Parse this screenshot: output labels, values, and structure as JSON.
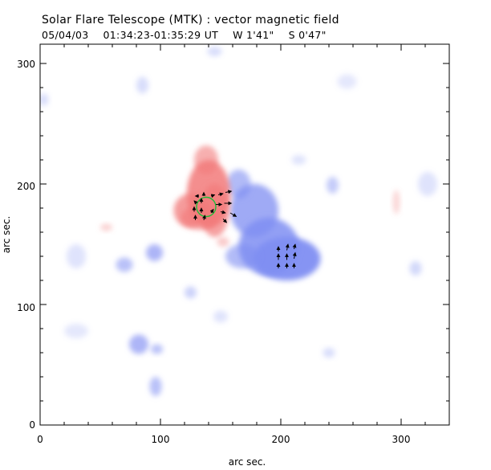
{
  "header": {
    "title": "Solar Flare Telescope (MTK) : vector magnetic field",
    "date": "05/04/03",
    "time_range": "01:34:23-01:35:29 UT",
    "pos_w": "W 1'41\"",
    "pos_s": "S 0'47\""
  },
  "chart_data": {
    "type": "heatmap",
    "title": "Solar Flare Telescope (MTK) : vector magnetic field",
    "xlabel": "arc sec.",
    "ylabel": "arc sec.",
    "xlim": [
      0,
      340
    ],
    "ylim": [
      0,
      316
    ],
    "xticks": [
      0,
      100,
      200,
      300
    ],
    "yticks": [
      0,
      100,
      200,
      300
    ],
    "colors": {
      "positive": "#f27a7a",
      "negative": "#7f8ef2",
      "contour": "#1fbf3a",
      "vector": "#000000"
    },
    "red_blobs": [
      {
        "cx": 140,
        "cy": 192,
        "rx": 18,
        "ry": 28,
        "a": 0.85
      },
      {
        "cx": 125,
        "cy": 178,
        "rx": 14,
        "ry": 14,
        "a": 0.75
      },
      {
        "cx": 133,
        "cy": 172,
        "rx": 16,
        "ry": 10,
        "a": 0.65
      },
      {
        "cx": 145,
        "cy": 178,
        "rx": 12,
        "ry": 22,
        "a": 0.7
      },
      {
        "cx": 138,
        "cy": 220,
        "rx": 10,
        "ry": 12,
        "a": 0.6
      },
      {
        "cx": 152,
        "cy": 152,
        "rx": 5,
        "ry": 4,
        "a": 0.4
      },
      {
        "cx": 55,
        "cy": 164,
        "rx": 5,
        "ry": 3,
        "a": 0.35
      },
      {
        "cx": 296,
        "cy": 185,
        "rx": 3,
        "ry": 10,
        "a": 0.3
      }
    ],
    "blue_blobs": [
      {
        "cx": 178,
        "cy": 178,
        "rx": 20,
        "ry": 22,
        "a": 0.75
      },
      {
        "cx": 205,
        "cy": 138,
        "rx": 28,
        "ry": 18,
        "a": 0.95
      },
      {
        "cx": 190,
        "cy": 148,
        "rx": 25,
        "ry": 24,
        "a": 0.85
      },
      {
        "cx": 168,
        "cy": 140,
        "rx": 14,
        "ry": 10,
        "a": 0.6
      },
      {
        "cx": 165,
        "cy": 200,
        "rx": 10,
        "ry": 12,
        "a": 0.6
      },
      {
        "cx": 82,
        "cy": 67,
        "rx": 8,
        "ry": 8,
        "a": 0.65
      },
      {
        "cx": 97,
        "cy": 63,
        "rx": 5,
        "ry": 4,
        "a": 0.55
      },
      {
        "cx": 95,
        "cy": 143,
        "rx": 7,
        "ry": 7,
        "a": 0.65
      },
      {
        "cx": 70,
        "cy": 133,
        "rx": 7,
        "ry": 6,
        "a": 0.55
      },
      {
        "cx": 96,
        "cy": 32,
        "rx": 5,
        "ry": 8,
        "a": 0.55
      },
      {
        "cx": 125,
        "cy": 110,
        "rx": 5,
        "ry": 5,
        "a": 0.4
      },
      {
        "cx": 243,
        "cy": 199,
        "rx": 5,
        "ry": 7,
        "a": 0.45
      },
      {
        "cx": 312,
        "cy": 130,
        "rx": 5,
        "ry": 6,
        "a": 0.35
      },
      {
        "cx": 85,
        "cy": 282,
        "rx": 5,
        "ry": 7,
        "a": 0.3
      },
      {
        "cx": 30,
        "cy": 140,
        "rx": 8,
        "ry": 10,
        "a": 0.25
      },
      {
        "cx": 30,
        "cy": 78,
        "rx": 10,
        "ry": 6,
        "a": 0.2
      },
      {
        "cx": 3,
        "cy": 270,
        "rx": 4,
        "ry": 5,
        "a": 0.3
      },
      {
        "cx": 145,
        "cy": 310,
        "rx": 6,
        "ry": 4,
        "a": 0.3
      },
      {
        "cx": 240,
        "cy": 60,
        "rx": 5,
        "ry": 4,
        "a": 0.3
      },
      {
        "cx": 215,
        "cy": 220,
        "rx": 6,
        "ry": 4,
        "a": 0.25
      },
      {
        "cx": 322,
        "cy": 200,
        "rx": 8,
        "ry": 10,
        "a": 0.25
      },
      {
        "cx": 255,
        "cy": 285,
        "rx": 8,
        "ry": 6,
        "a": 0.2
      },
      {
        "cx": 150,
        "cy": 90,
        "rx": 6,
        "ry": 5,
        "a": 0.25
      }
    ],
    "contour": {
      "cx": 138,
      "cy": 181,
      "rx": 8,
      "ry": 8
    },
    "vectors": [
      {
        "x": 132,
        "y": 190,
        "dx": -3,
        "dy": 0
      },
      {
        "x": 136,
        "y": 190,
        "dx": 0,
        "dy": 3
      },
      {
        "x": 142,
        "y": 190,
        "dx": 3,
        "dy": 1
      },
      {
        "x": 148,
        "y": 191,
        "dx": 4,
        "dy": 1
      },
      {
        "x": 154,
        "y": 193,
        "dx": 5,
        "dy": 1
      },
      {
        "x": 130,
        "y": 184,
        "dx": -2,
        "dy": 2
      },
      {
        "x": 134,
        "y": 184,
        "dx": 0,
        "dy": 4
      },
      {
        "x": 146,
        "y": 183,
        "dx": 5,
        "dy": 0
      },
      {
        "x": 153,
        "y": 184,
        "dx": 6,
        "dy": 0
      },
      {
        "x": 128,
        "y": 177,
        "dx": 0,
        "dy": 4
      },
      {
        "x": 134,
        "y": 176,
        "dx": 0,
        "dy": 4
      },
      {
        "x": 142,
        "y": 176,
        "dx": 2,
        "dy": 3
      },
      {
        "x": 150,
        "y": 177,
        "dx": 4,
        "dy": -1
      },
      {
        "x": 158,
        "y": 176,
        "dx": 5,
        "dy": -3
      },
      {
        "x": 129,
        "y": 170,
        "dx": 0,
        "dy": 4
      },
      {
        "x": 136,
        "y": 170,
        "dx": 1,
        "dy": 4
      },
      {
        "x": 152,
        "y": 171,
        "dx": 3,
        "dy": -3
      },
      {
        "x": 198,
        "y": 144,
        "dx": 0,
        "dy": 4
      },
      {
        "x": 198,
        "y": 137,
        "dx": 0,
        "dy": 5
      },
      {
        "x": 198,
        "y": 130,
        "dx": 0,
        "dy": 4
      },
      {
        "x": 205,
        "y": 145,
        "dx": 1,
        "dy": 5
      },
      {
        "x": 205,
        "y": 137,
        "dx": 0,
        "dy": 5
      },
      {
        "x": 205,
        "y": 130,
        "dx": 0,
        "dy": 4
      },
      {
        "x": 211,
        "y": 146,
        "dx": 1,
        "dy": 4
      },
      {
        "x": 211,
        "y": 138,
        "dx": 1,
        "dy": 5
      },
      {
        "x": 211,
        "y": 130,
        "dx": 0,
        "dy": 4
      }
    ]
  }
}
